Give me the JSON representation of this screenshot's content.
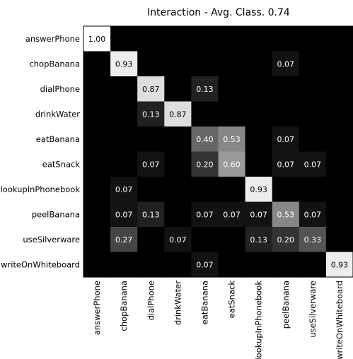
{
  "chart_data": {
    "type": "heatmap",
    "title": "Interaction - Avg. Class. 0.74",
    "rows": [
      "answerPhone",
      "chopBanana",
      "dialPhone",
      "drinkWater",
      "eatBanana",
      "eatSnack",
      "lookupInPhonebook",
      "peelBanana",
      "useSilverware",
      "writeOnWhiteboard"
    ],
    "columns": [
      "answerPhone",
      "chopBanana",
      "dialPhone",
      "drinkWater",
      "eatBanana",
      "eatSnack",
      "lookupInPhonebook",
      "peelBanana",
      "useSilverware",
      "writeOnWhiteboard"
    ],
    "values": [
      [
        1.0,
        0,
        0,
        0,
        0,
        0,
        0,
        0,
        0,
        0
      ],
      [
        0,
        0.93,
        0,
        0,
        0,
        0,
        0,
        0.07,
        0,
        0
      ],
      [
        0,
        0,
        0.87,
        0,
        0.13,
        0,
        0,
        0,
        0,
        0
      ],
      [
        0,
        0,
        0.13,
        0.87,
        0,
        0,
        0,
        0,
        0,
        0
      ],
      [
        0,
        0,
        0,
        0,
        0.4,
        0.53,
        0,
        0.07,
        0,
        0
      ],
      [
        0,
        0,
        0.07,
        0,
        0.2,
        0.6,
        0,
        0.07,
        0.07,
        0
      ],
      [
        0,
        0.07,
        0,
        0,
        0,
        0,
        0.93,
        0,
        0,
        0
      ],
      [
        0,
        0.07,
        0.13,
        0,
        0.07,
        0.07,
        0.07,
        0.53,
        0.07,
        0
      ],
      [
        0,
        0.27,
        0,
        0.07,
        0,
        0,
        0.13,
        0.2,
        0.33,
        0
      ],
      [
        0,
        0,
        0,
        0,
        0.07,
        0,
        0,
        0,
        0,
        0.93
      ]
    ],
    "value_range": [
      0,
      1
    ],
    "colormap": "gray",
    "grid": false
  }
}
